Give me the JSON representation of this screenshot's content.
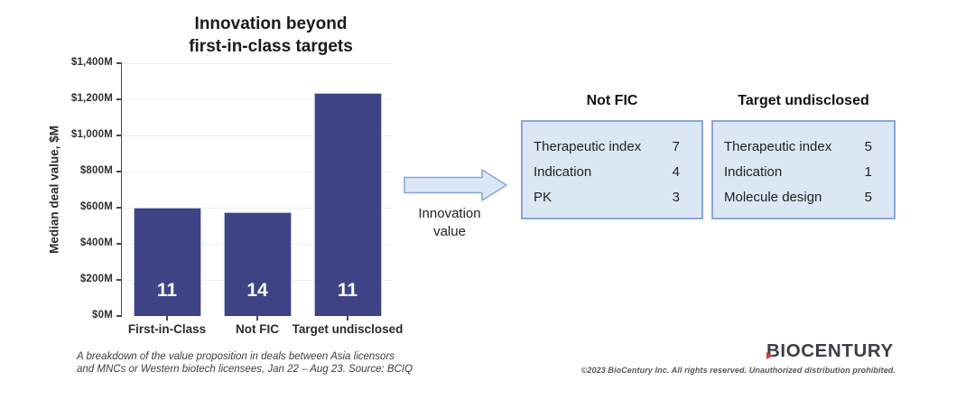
{
  "title": {
    "line1": "Innovation beyond",
    "line2": "first-in-class targets"
  },
  "chart_data": {
    "type": "bar",
    "title": "Innovation beyond first-in-class targets",
    "xlabel": "",
    "ylabel": "Median deal value, $M",
    "ylim": [
      0,
      1400
    ],
    "grid": true,
    "ytick_labels": [
      "$0M",
      "$200M",
      "$400M",
      "$600M",
      "$800M",
      "$1,000M",
      "$1,200M",
      "$1,400M"
    ],
    "categories": [
      "First-in-Class",
      "Not FIC",
      "Target undisclosed"
    ],
    "values": [
      600,
      575,
      1235
    ],
    "bar_labels": [
      "11",
      "14",
      "11"
    ],
    "bar_color": "#3e4386"
  },
  "arrow": {
    "caption_line1": "Innovation",
    "caption_line2": "value"
  },
  "tables": [
    {
      "title": "Not FIC",
      "rows": [
        [
          "Therapeutic index",
          "7"
        ],
        [
          "Indication",
          "4"
        ],
        [
          "PK",
          "3"
        ]
      ]
    },
    {
      "title": "Target undisclosed",
      "rows": [
        [
          "Therapeutic index",
          "5"
        ],
        [
          "Indication",
          "1"
        ],
        [
          "Molecule design",
          "5"
        ]
      ]
    }
  ],
  "footnote": {
    "line1": "A breakdown of the value proposition in deals between Asia licensors",
    "line2": "and MNCs or Western biotech licensees, Jan 22 – Aug 23. Source: BCIQ"
  },
  "branding": {
    "logo_text": "BIOCENTURY",
    "copyright": "©2023 BioCentury Inc. All rights reserved.  Unauthorized distribution prohibited."
  },
  "colors": {
    "bar": "#3e4386",
    "box_fill": "#dbe7f5",
    "box_border": "#8ba6d6",
    "logo_red": "#e03a3a"
  }
}
